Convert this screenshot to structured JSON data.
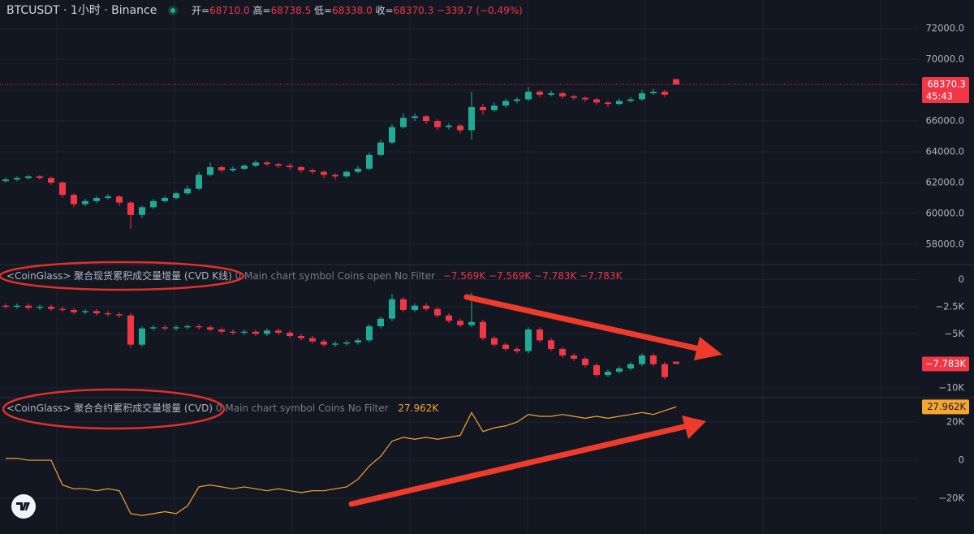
{
  "header": {
    "symbol": "BTCUSDT · 1小时 · Binance",
    "ohlc": [
      {
        "name": "开=",
        "value": "68710.0"
      },
      {
        "name": "高=",
        "value": "68738.5"
      },
      {
        "name": "低=",
        "value": "68338.0"
      },
      {
        "name": "收=",
        "value": "68370.3"
      }
    ],
    "change": "−339.7",
    "change_pct": "(−0.49%)"
  },
  "chart_data": [
    {
      "type": "candlestick",
      "up_color": "#22ab94",
      "down_color": "#f23645",
      "open": [
        62100,
        62200,
        62300,
        62400,
        62300,
        62000,
        61200,
        60600,
        60800,
        61000,
        61100,
        60700,
        59900,
        60400,
        60800,
        61000,
        61300,
        61600,
        62500,
        63000,
        62800,
        62900,
        63100,
        63300,
        63200,
        63100,
        63000,
        62800,
        62700,
        62500,
        62400,
        62700,
        62900,
        63800,
        64600,
        65600,
        66200,
        66300,
        66000,
        65600,
        65700,
        65400,
        66900,
        66700,
        67000,
        67300,
        67400,
        67900,
        67700,
        67800,
        67600,
        67500,
        67400,
        67200,
        67100,
        67300,
        67400,
        67800,
        67900,
        68710
      ],
      "high": [
        62350,
        62400,
        62500,
        62500,
        62400,
        62100,
        61300,
        60950,
        61150,
        61250,
        61200,
        60800,
        60500,
        60950,
        61150,
        61400,
        61800,
        62700,
        63300,
        63100,
        63050,
        63200,
        63450,
        63400,
        63300,
        63250,
        63100,
        62900,
        62800,
        62600,
        62800,
        63100,
        63950,
        64800,
        65800,
        66500,
        66500,
        66400,
        66100,
        65850,
        65800,
        67900,
        67100,
        67200,
        67450,
        67550,
        68200,
        68000,
        67950,
        67900,
        67700,
        67600,
        67500,
        67300,
        67450,
        67550,
        68000,
        68100,
        68000,
        68738.5
      ],
      "low": [
        62000,
        62100,
        62200,
        62200,
        61850,
        61000,
        60400,
        60450,
        60650,
        60900,
        60500,
        59000,
        59700,
        60300,
        60700,
        60900,
        61200,
        61500,
        62400,
        62650,
        62700,
        62800,
        63000,
        63050,
        62950,
        62850,
        62650,
        62550,
        62300,
        62200,
        62300,
        62600,
        62800,
        63700,
        64500,
        65500,
        66000,
        65800,
        65400,
        65450,
        65200,
        64800,
        66400,
        66600,
        66850,
        67150,
        67300,
        67550,
        67600,
        67450,
        67350,
        67250,
        67050,
        66900,
        67000,
        67200,
        67300,
        67700,
        67550,
        68338
      ],
      "close": [
        62200,
        62300,
        62400,
        62300,
        62000,
        61200,
        60600,
        60800,
        61000,
        61100,
        60700,
        59900,
        60400,
        60800,
        61000,
        61300,
        61600,
        62500,
        63000,
        62800,
        62900,
        63100,
        63300,
        63200,
        63100,
        63000,
        62800,
        62700,
        62500,
        62400,
        62700,
        62900,
        63800,
        64600,
        65600,
        66200,
        66300,
        66000,
        65600,
        65700,
        65400,
        66900,
        66700,
        67000,
        67300,
        67400,
        67900,
        67700,
        67800,
        67600,
        67500,
        67400,
        67200,
        67100,
        67300,
        67400,
        67800,
        67900,
        67700,
        68370.3
      ],
      "ylim": [
        56680,
        73850
      ],
      "yticks": [
        {
          "value": 58000,
          "label": "58000.0"
        },
        {
          "value": 60000,
          "label": "60000.0"
        },
        {
          "value": 62000,
          "label": "62000.0"
        },
        {
          "value": 64000,
          "label": "64000.0"
        },
        {
          "value": 66000,
          "label": "66000.0"
        },
        {
          "value": 68000,
          "label": "68000.0"
        },
        {
          "value": 70000,
          "label": "70000.0"
        },
        {
          "value": 72000,
          "label": "72000.0"
        }
      ],
      "last_label": "68370.3",
      "countdown": "45:43"
    },
    {
      "type": "candlestick",
      "up_color": "#22ab94",
      "down_color": "#f23645",
      "title": "<CoinGlass> 聚合现货累积成交量增量 (CVD K线)",
      "settings": "0 Main chart symbol Coins open No Filter",
      "header_values": [
        "−7.569K",
        "−7.569K",
        "−7.783K",
        "−7.783K"
      ],
      "open": [
        -2.4,
        -2.5,
        -2.4,
        -2.6,
        -2.5,
        -2.7,
        -2.8,
        -3.0,
        -2.9,
        -3.1,
        -3.2,
        -3.3,
        -6.0,
        -4.5,
        -4.4,
        -4.5,
        -4.4,
        -4.3,
        -4.4,
        -4.6,
        -4.8,
        -4.9,
        -4.8,
        -5.0,
        -4.7,
        -4.9,
        -5.2,
        -5.4,
        -5.7,
        -6.0,
        -5.9,
        -5.8,
        -5.6,
        -4.3,
        -3.6,
        -1.8,
        -2.8,
        -2.4,
        -2.7,
        -3.3,
        -3.8,
        -4.2,
        -3.9,
        -5.4,
        -6.0,
        -6.4,
        -6.6,
        -4.6,
        -5.6,
        -6.4,
        -7.0,
        -7.3,
        -7.9,
        -8.8,
        -8.5,
        -8.2,
        -7.8,
        -7.0,
        -7.8,
        -7.569
      ],
      "high": [
        -2.2,
        -2.2,
        -2.2,
        -2.3,
        -2.3,
        -2.5,
        -2.6,
        -2.7,
        -2.7,
        -2.9,
        -3.0,
        -3.1,
        -4.3,
        -4.2,
        -4.2,
        -4.2,
        -4.1,
        -4.1,
        -4.2,
        -4.4,
        -4.6,
        -4.6,
        -4.6,
        -4.5,
        -4.5,
        -4.7,
        -5.0,
        -5.2,
        -5.5,
        -5.7,
        -5.6,
        -5.4,
        -4.1,
        -3.4,
        -1.3,
        -1.6,
        -2.2,
        -2.2,
        -2.5,
        -3.1,
        -3.6,
        -1.2,
        -3.7,
        -5.2,
        -5.8,
        -6.2,
        -4.4,
        -4.4,
        -5.4,
        -6.2,
        -6.8,
        -7.1,
        -7.7,
        -8.3,
        -8.0,
        -7.6,
        -6.8,
        -6.8,
        -7.6,
        -7.569
      ],
      "low": [
        -2.7,
        -2.7,
        -2.8,
        -2.8,
        -2.9,
        -3.0,
        -3.2,
        -3.2,
        -3.3,
        -3.4,
        -3.5,
        -6.3,
        -6.2,
        -4.7,
        -4.7,
        -4.7,
        -4.6,
        -4.6,
        -4.8,
        -5.0,
        -5.1,
        -5.1,
        -5.2,
        -5.2,
        -5.1,
        -5.4,
        -5.6,
        -5.9,
        -6.2,
        -6.2,
        -6.1,
        -6.0,
        -5.8,
        -4.5,
        -3.8,
        -3.0,
        -3.0,
        -2.9,
        -3.5,
        -4.0,
        -4.4,
        -4.4,
        -5.6,
        -6.2,
        -6.6,
        -6.8,
        -6.8,
        -5.8,
        -6.6,
        -7.2,
        -7.5,
        -8.1,
        -9.0,
        -9.0,
        -8.7,
        -8.4,
        -8.0,
        -8.0,
        -9.2,
        -7.783
      ],
      "close": [
        -2.5,
        -2.4,
        -2.6,
        -2.5,
        -2.7,
        -2.8,
        -3.0,
        -2.9,
        -3.1,
        -3.2,
        -3.3,
        -6.0,
        -4.5,
        -4.4,
        -4.5,
        -4.4,
        -4.3,
        -4.4,
        -4.6,
        -4.8,
        -4.9,
        -4.8,
        -5.0,
        -4.7,
        -4.9,
        -5.2,
        -5.4,
        -5.7,
        -6.0,
        -5.9,
        -5.8,
        -5.6,
        -4.3,
        -3.6,
        -1.8,
        -2.8,
        -2.4,
        -2.7,
        -3.3,
        -3.8,
        -4.2,
        -3.9,
        -5.4,
        -6.0,
        -6.4,
        -6.6,
        -4.6,
        -5.6,
        -6.4,
        -7.0,
        -7.3,
        -7.9,
        -8.8,
        -8.5,
        -8.2,
        -7.8,
        -7.0,
        -7.8,
        -9.0,
        -7.783
      ],
      "ylim": [
        -10.9,
        1.4
      ],
      "yticks": [
        {
          "value": 0,
          "label": "0"
        },
        {
          "value": -2.5,
          "label": "−2.5K"
        },
        {
          "value": -5,
          "label": "−5K"
        },
        {
          "value": -10,
          "label": "−10K"
        }
      ],
      "last_label": "−7.783K"
    },
    {
      "type": "line",
      "color": "#f7a531",
      "title": "<CoinGlass> 聚合合约累积成交量增量 (CVD)",
      "settings": "0 Main chart symbol Coins No Filter",
      "header_values": [
        "27.962K"
      ],
      "values": [
        1,
        1,
        0,
        0,
        0,
        -13,
        -15,
        -15,
        -16,
        -15,
        -16,
        -28,
        -29,
        -28,
        -27,
        -28,
        -24,
        -14,
        -13,
        -14,
        -15,
        -14,
        -15,
        -16,
        -15,
        -16,
        -17,
        -16,
        -16,
        -15,
        -14,
        -10,
        -3,
        2,
        10,
        12,
        11,
        12,
        11,
        12,
        13,
        25,
        15,
        17,
        18,
        20,
        24,
        23,
        23,
        24,
        23,
        22,
        23,
        22,
        23,
        24,
        25,
        24,
        26,
        27.962
      ],
      "ylim": [
        -38.7,
        32.8
      ],
      "yticks": [
        {
          "value": 20,
          "label": "20K"
        },
        {
          "value": 0,
          "label": "0"
        },
        {
          "value": -20,
          "label": "−20K"
        }
      ],
      "last_label": "27.962K"
    }
  ]
}
